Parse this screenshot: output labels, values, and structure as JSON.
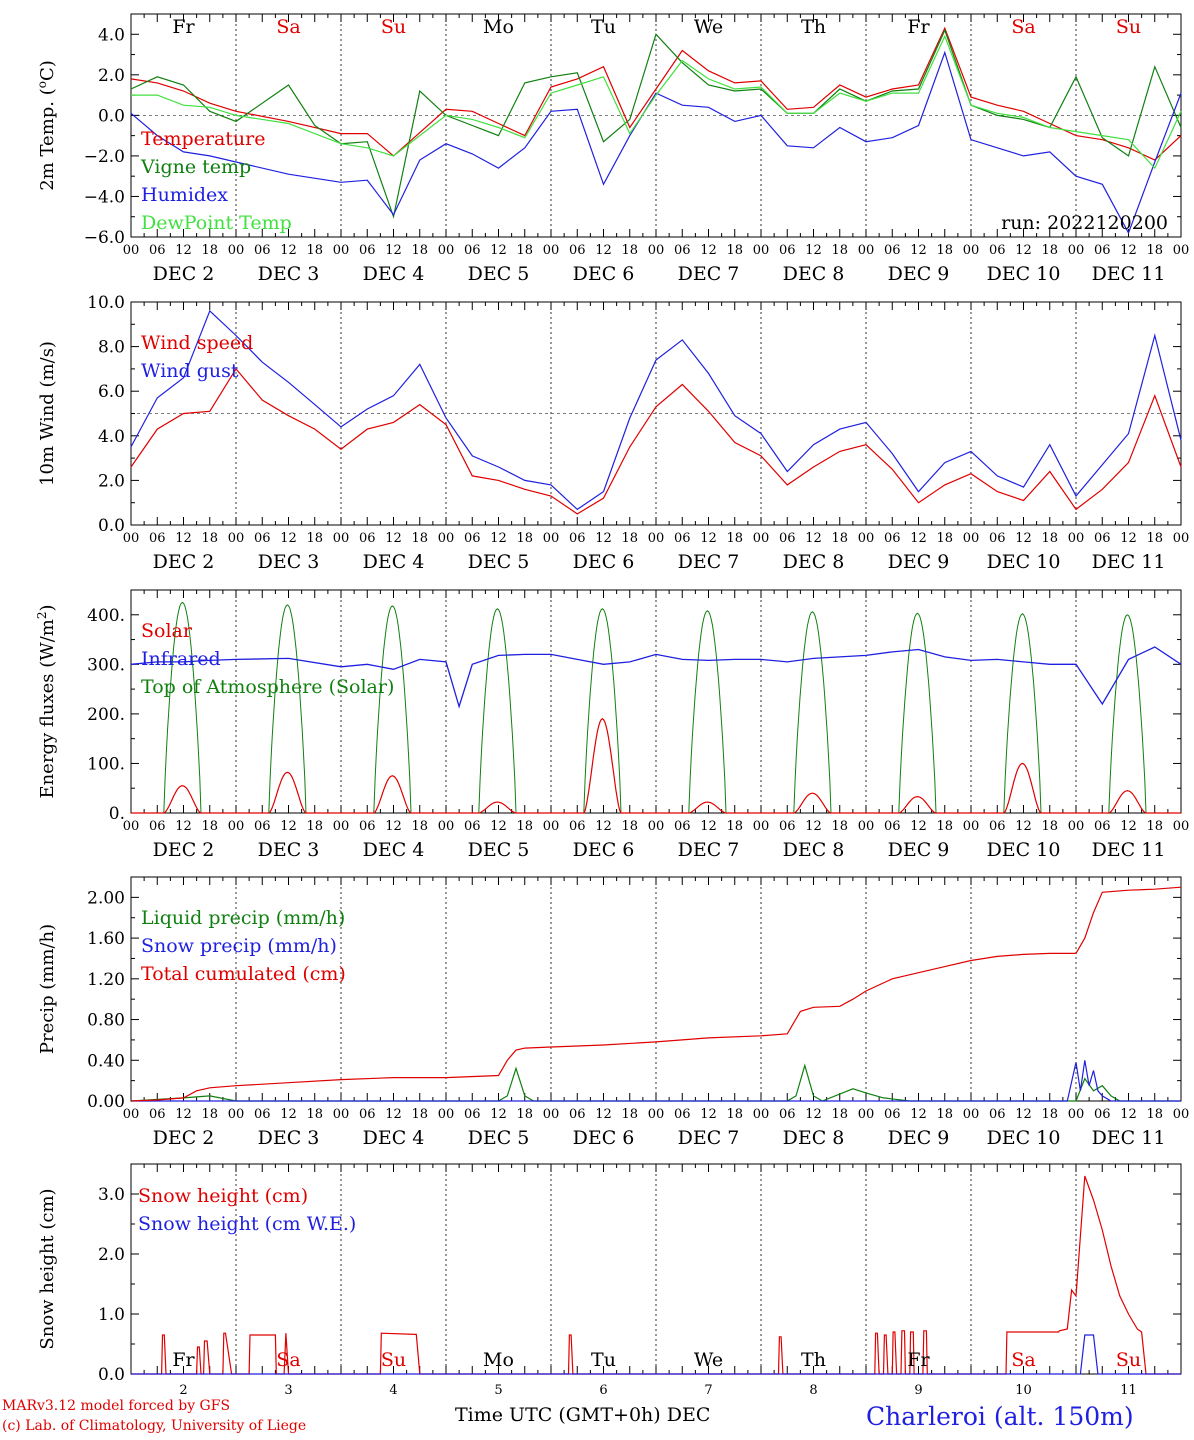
{
  "weekdays": [
    "Fr",
    "Sa",
    "Su",
    "Mo",
    "Tu",
    "We",
    "Th",
    "Fr",
    "Sa",
    "Su"
  ],
  "dates": [
    "DEC  2",
    "DEC  3",
    "DEC  4",
    "DEC  5",
    "DEC  6",
    "DEC  7",
    "DEC  8",
    "DEC  9",
    "DEC 10",
    "DEC 11"
  ],
  "hour_ticks": [
    "00",
    "06",
    "12",
    "18"
  ],
  "bottom_days": [
    "2",
    "3",
    "4",
    "5",
    "6",
    "7",
    "8",
    "9",
    "10",
    "11"
  ],
  "colors": {
    "red": "#e00000",
    "green": "#108010",
    "blue": "#2020e0",
    "lightgreen": "#40e040",
    "black": "#000000"
  },
  "footer": {
    "credit1": "MARv3.12 model forced by GFS",
    "credit2": "(c) Lab. of Climatology, University of Liege",
    "xtitle": "Time UTC (GMT+0h)",
    "xunit": "DEC",
    "station": "Charleroi (alt. 150m)"
  },
  "chart_data": [
    {
      "type": "line",
      "ylabel": "2m Temp. (oC)",
      "ylim": [
        -6,
        5
      ],
      "ticks": [
        "4.0",
        "2.0",
        "0.0",
        "−2.0",
        "−4.0",
        "−6.0"
      ],
      "tick_values": [
        4,
        2,
        0,
        -2,
        -4,
        -6
      ],
      "hline": 0,
      "run_label": "run: 2022120200",
      "x_range_hours": [
        0,
        240
      ],
      "series": [
        {
          "name": "Temperature",
          "color": "red",
          "x": [
            0,
            6,
            12,
            18,
            24,
            36,
            48,
            54,
            60,
            72,
            78,
            84,
            90,
            96,
            102,
            108,
            114,
            120,
            126,
            132,
            138,
            144,
            150,
            156,
            162,
            168,
            174,
            180,
            186,
            192,
            198,
            204,
            210,
            216,
            222,
            228,
            234,
            240
          ],
          "y": [
            1.8,
            1.6,
            1.2,
            0.6,
            0.2,
            -0.3,
            -0.9,
            -0.9,
            -2.0,
            0.3,
            0.2,
            -0.4,
            -1.0,
            1.4,
            1.8,
            2.4,
            -0.6,
            1.3,
            3.2,
            2.2,
            1.6,
            1.7,
            0.3,
            0.4,
            1.5,
            0.9,
            1.3,
            1.5,
            4.3,
            0.9,
            0.5,
            0.2,
            -0.4,
            -1.0,
            -1.2,
            -1.6,
            -2.2,
            -1.0
          ]
        },
        {
          "name": "Vigne temp",
          "color": "green",
          "x": [
            0,
            6,
            12,
            18,
            24,
            36,
            42,
            48,
            54,
            60,
            66,
            72,
            78,
            84,
            90,
            96,
            102,
            108,
            114,
            120,
            126,
            132,
            138,
            144,
            150,
            156,
            162,
            168,
            174,
            180,
            186,
            192,
            198,
            204,
            210,
            216,
            222,
            228,
            234,
            240
          ],
          "y": [
            1.3,
            1.9,
            1.5,
            0.2,
            -0.3,
            1.5,
            -0.5,
            -1.4,
            -1.3,
            -5.0,
            1.2,
            0.0,
            -0.5,
            -1.0,
            1.6,
            1.9,
            2.1,
            -1.3,
            -0.2,
            4.0,
            2.6,
            1.5,
            1.2,
            1.3,
            0.1,
            0.1,
            1.3,
            0.7,
            1.2,
            1.3,
            4.2,
            0.5,
            0.0,
            -0.2,
            -0.6,
            1.9,
            -1.1,
            -2.0,
            2.4,
            -0.6
          ]
        },
        {
          "name": "Humidex",
          "color": "blue",
          "x": [
            0,
            6,
            12,
            18,
            24,
            36,
            48,
            54,
            60,
            66,
            72,
            78,
            84,
            90,
            96,
            102,
            108,
            114,
            120,
            126,
            132,
            138,
            144,
            150,
            156,
            162,
            168,
            174,
            180,
            186,
            192,
            198,
            204,
            210,
            216,
            222,
            228,
            234,
            240
          ],
          "y": [
            0.1,
            -1.0,
            -1.8,
            -2.0,
            -2.3,
            -2.9,
            -3.3,
            -3.2,
            -4.9,
            -2.2,
            -1.4,
            -1.9,
            -2.6,
            -1.6,
            0.2,
            0.3,
            -3.4,
            -1.0,
            1.1,
            0.5,
            0.4,
            -0.3,
            0.0,
            -1.5,
            -1.6,
            -0.6,
            -1.3,
            -1.1,
            -0.5,
            3.1,
            -1.2,
            -1.6,
            -2.0,
            -1.8,
            -3.0,
            -3.4,
            -5.8,
            -2.3,
            1.1
          ]
        },
        {
          "name": "DewPoint Temp",
          "color": "lightgreen",
          "x": [
            0,
            6,
            12,
            18,
            24,
            36,
            48,
            54,
            60,
            72,
            78,
            84,
            90,
            96,
            102,
            108,
            114,
            120,
            126,
            132,
            138,
            144,
            150,
            156,
            162,
            168,
            174,
            180,
            186,
            192,
            198,
            204,
            210,
            216,
            222,
            228,
            234,
            240
          ],
          "y": [
            1.0,
            1.0,
            0.5,
            0.4,
            0.0,
            -0.4,
            -1.4,
            -1.6,
            -2.0,
            0.0,
            -0.2,
            -0.6,
            -1.1,
            1.1,
            1.5,
            1.9,
            -0.9,
            1.0,
            2.7,
            1.8,
            1.3,
            1.4,
            0.1,
            0.1,
            1.1,
            0.7,
            1.1,
            1.1,
            3.9,
            0.5,
            0.1,
            -0.1,
            -0.6,
            -0.8,
            -1.0,
            -1.2,
            -2.6,
            0.2
          ]
        }
      ]
    },
    {
      "type": "line",
      "ylabel": "10m Wind (m/s)",
      "ylim": [
        0,
        10
      ],
      "ticks": [
        "10.0",
        "8.0",
        "6.0",
        "4.0",
        "2.0",
        "0.0"
      ],
      "tick_values": [
        10,
        8,
        6,
        4,
        2,
        0
      ],
      "hline": 5,
      "x_range_hours": [
        0,
        240
      ],
      "series": [
        {
          "name": "Wind speed",
          "color": "red",
          "x": [
            0,
            6,
            12,
            18,
            24,
            30,
            36,
            42,
            48,
            54,
            60,
            66,
            72,
            78,
            84,
            90,
            96,
            102,
            108,
            114,
            120,
            126,
            132,
            138,
            144,
            150,
            156,
            162,
            168,
            174,
            180,
            186,
            192,
            198,
            204,
            210,
            216,
            222,
            228,
            234,
            240
          ],
          "y": [
            2.6,
            4.3,
            5.0,
            5.1,
            7.0,
            5.6,
            4.9,
            4.3,
            3.4,
            4.3,
            4.6,
            5.4,
            4.5,
            2.2,
            2.0,
            1.6,
            1.3,
            0.5,
            1.2,
            3.5,
            5.3,
            6.3,
            5.1,
            3.7,
            3.1,
            1.8,
            2.6,
            3.3,
            3.6,
            2.5,
            1.0,
            1.8,
            2.3,
            1.5,
            1.1,
            2.4,
            0.7,
            1.6,
            2.8,
            5.8,
            2.6
          ]
        },
        {
          "name": "Wind gust",
          "color": "blue",
          "x": [
            0,
            6,
            12,
            18,
            24,
            30,
            36,
            42,
            48,
            54,
            60,
            66,
            72,
            78,
            84,
            90,
            96,
            102,
            108,
            114,
            120,
            126,
            132,
            138,
            144,
            150,
            156,
            162,
            168,
            174,
            180,
            186,
            192,
            198,
            204,
            210,
            216,
            222,
            228,
            234,
            240
          ],
          "y": [
            3.5,
            5.7,
            6.6,
            9.6,
            8.5,
            7.3,
            6.4,
            5.4,
            4.4,
            5.2,
            5.8,
            7.2,
            4.8,
            3.1,
            2.6,
            2.0,
            1.8,
            0.7,
            1.5,
            4.8,
            7.4,
            8.3,
            6.8,
            4.9,
            4.1,
            2.4,
            3.6,
            4.3,
            4.6,
            3.2,
            1.5,
            2.8,
            3.3,
            2.2,
            1.7,
            3.6,
            1.3,
            2.7,
            4.1,
            8.5,
            3.8
          ]
        }
      ]
    },
    {
      "type": "line",
      "ylabel": "Energy fluxes (W/m2)",
      "ylim": [
        0,
        450
      ],
      "ticks": [
        "400.",
        "300.",
        "200.",
        "100.",
        "0."
      ],
      "tick_values": [
        400,
        300,
        200,
        100,
        0
      ],
      "x_range_hours": [
        0,
        240
      ],
      "toa_peaks": [
        425,
        420,
        418,
        412,
        412,
        408,
        406,
        403,
        402,
        400
      ],
      "solar_peaks": [
        55,
        82,
        75,
        22,
        190,
        22,
        40,
        33,
        100,
        45
      ],
      "series": [
        {
          "name": "Solar",
          "color": "red"
        },
        {
          "name": "Infrared",
          "color": "blue",
          "x": [
            0,
            6,
            12,
            18,
            24,
            36,
            48,
            54,
            60,
            66,
            72,
            75,
            78,
            84,
            90,
            96,
            102,
            108,
            114,
            120,
            126,
            132,
            138,
            144,
            150,
            156,
            162,
            168,
            174,
            180,
            186,
            192,
            198,
            204,
            210,
            216,
            222,
            228,
            234,
            240
          ],
          "y": [
            300,
            305,
            305,
            308,
            310,
            312,
            295,
            300,
            290,
            310,
            305,
            215,
            300,
            318,
            320,
            320,
            310,
            300,
            305,
            320,
            310,
            308,
            310,
            310,
            305,
            312,
            315,
            318,
            325,
            330,
            315,
            308,
            310,
            305,
            300,
            300,
            220,
            310,
            335,
            300
          ]
        },
        {
          "name": "Top of Atmosphere (Solar)",
          "color": "green"
        }
      ]
    },
    {
      "type": "line",
      "ylabel": "Precip (mm/h)",
      "ylim": [
        0,
        2.2
      ],
      "ticks": [
        "2.00",
        "1.60",
        "1.20",
        "0.80",
        "0.40",
        "0.00"
      ],
      "tick_values": [
        2.0,
        1.6,
        1.2,
        0.8,
        0.4,
        0.0
      ],
      "x_range_hours": [
        0,
        240
      ],
      "series": [
        {
          "name": "Liquid precip (mm/h)",
          "color": "green",
          "x": [
            0,
            12,
            18,
            24,
            84,
            86,
            88,
            90,
            92,
            150,
            152,
            154,
            156,
            158,
            165,
            168,
            172,
            178,
            216,
            218,
            220,
            222,
            224,
            226,
            240
          ],
          "y": [
            0,
            0.03,
            0.05,
            0,
            0,
            0.05,
            0.32,
            0.05,
            0,
            0,
            0.05,
            0.35,
            0.05,
            0,
            0.12,
            0.08,
            0.03,
            0,
            0,
            0.22,
            0.1,
            0.15,
            0.05,
            0,
            0
          ]
        },
        {
          "name": "Snow precip (mm/h)",
          "color": "blue",
          "x": [
            0,
            214,
            216,
            217,
            218,
            219,
            220,
            221,
            222,
            224,
            240
          ],
          "y": [
            0,
            0,
            0.38,
            0.1,
            0.4,
            0.15,
            0.3,
            0.1,
            0.05,
            0,
            0
          ]
        },
        {
          "name": "Total cumulated (cm)",
          "color": "red",
          "x": [
            0,
            6,
            12,
            15,
            18,
            24,
            36,
            48,
            60,
            72,
            84,
            86,
            88,
            90,
            96,
            108,
            120,
            132,
            144,
            150,
            153,
            156,
            162,
            165,
            168,
            174,
            180,
            186,
            192,
            198,
            204,
            210,
            216,
            218,
            220,
            222,
            228,
            234,
            240
          ],
          "y": [
            0,
            0.01,
            0.03,
            0.1,
            0.13,
            0.15,
            0.18,
            0.21,
            0.23,
            0.23,
            0.25,
            0.4,
            0.5,
            0.52,
            0.53,
            0.55,
            0.58,
            0.62,
            0.64,
            0.66,
            0.88,
            0.92,
            0.93,
            1.0,
            1.08,
            1.2,
            1.26,
            1.32,
            1.38,
            1.42,
            1.44,
            1.45,
            1.45,
            1.6,
            1.85,
            2.05,
            2.07,
            2.08,
            2.1
          ]
        }
      ]
    },
    {
      "type": "line",
      "ylabel": "Snow height (cm)",
      "ylim": [
        0,
        3.5
      ],
      "ticks": [
        "3.0",
        "2.0",
        "1.0",
        "0.0"
      ],
      "tick_values": [
        3.0,
        2.0,
        1.0,
        0.0
      ],
      "x_range_hours": [
        0,
        240
      ],
      "series": [
        {
          "name": "Snow height (cm)",
          "color": "red",
          "x": [
            0,
            7,
            7.2,
            7.6,
            8,
            15,
            15.2,
            15.6,
            16,
            16.6,
            16.8,
            17.4,
            18,
            21,
            21.2,
            21.6,
            23,
            27,
            27.2,
            33,
            33.2,
            35,
            35.4,
            36,
            57,
            57.2,
            65,
            65.2,
            66,
            66.4,
            67,
            100,
            100.2,
            100.6,
            101,
            148,
            148.2,
            148.6,
            149,
            170,
            170.2,
            170.6,
            171,
            172,
            172.2,
            172.6,
            173,
            174,
            174.2,
            174.6,
            175,
            176,
            176.2,
            176.8,
            177,
            178,
            178.2,
            178.8,
            179,
            181,
            181.2,
            181.8,
            182,
            200,
            200.2,
            212,
            212.2,
            214,
            215,
            216,
            217,
            218,
            220,
            222,
            224,
            226,
            228,
            230,
            231,
            232,
            240
          ],
          "y": [
            0,
            0,
            0.65,
            0.65,
            0,
            0,
            0.45,
            0.45,
            0,
            0,
            0.55,
            0.55,
            0,
            0,
            0.68,
            0.68,
            0,
            0,
            0.65,
            0.65,
            0,
            0,
            0.68,
            0,
            0,
            0.68,
            0.66,
            0.66,
            0,
            0,
            0,
            0,
            0.65,
            0.65,
            0,
            0,
            0.62,
            0.62,
            0,
            0,
            0.68,
            0.68,
            0,
            0,
            0.65,
            0.65,
            0,
            0,
            0.7,
            0.7,
            0,
            0,
            0.72,
            0.72,
            0,
            0,
            0.7,
            0.7,
            0,
            0,
            0.72,
            0.72,
            0,
            0,
            0.7,
            0.7,
            0.72,
            0.75,
            1.4,
            1.3,
            2.3,
            3.3,
            2.9,
            2.4,
            1.8,
            1.3,
            1.0,
            0.75,
            0.7,
            0,
            0
          ]
        },
        {
          "name": "Snow height (cm W.E.)",
          "color": "blue",
          "x": [
            0,
            217,
            218,
            219,
            220,
            221,
            240
          ],
          "y": [
            0,
            0,
            0.65,
            0.65,
            0.65,
            0,
            0
          ]
        }
      ]
    }
  ]
}
